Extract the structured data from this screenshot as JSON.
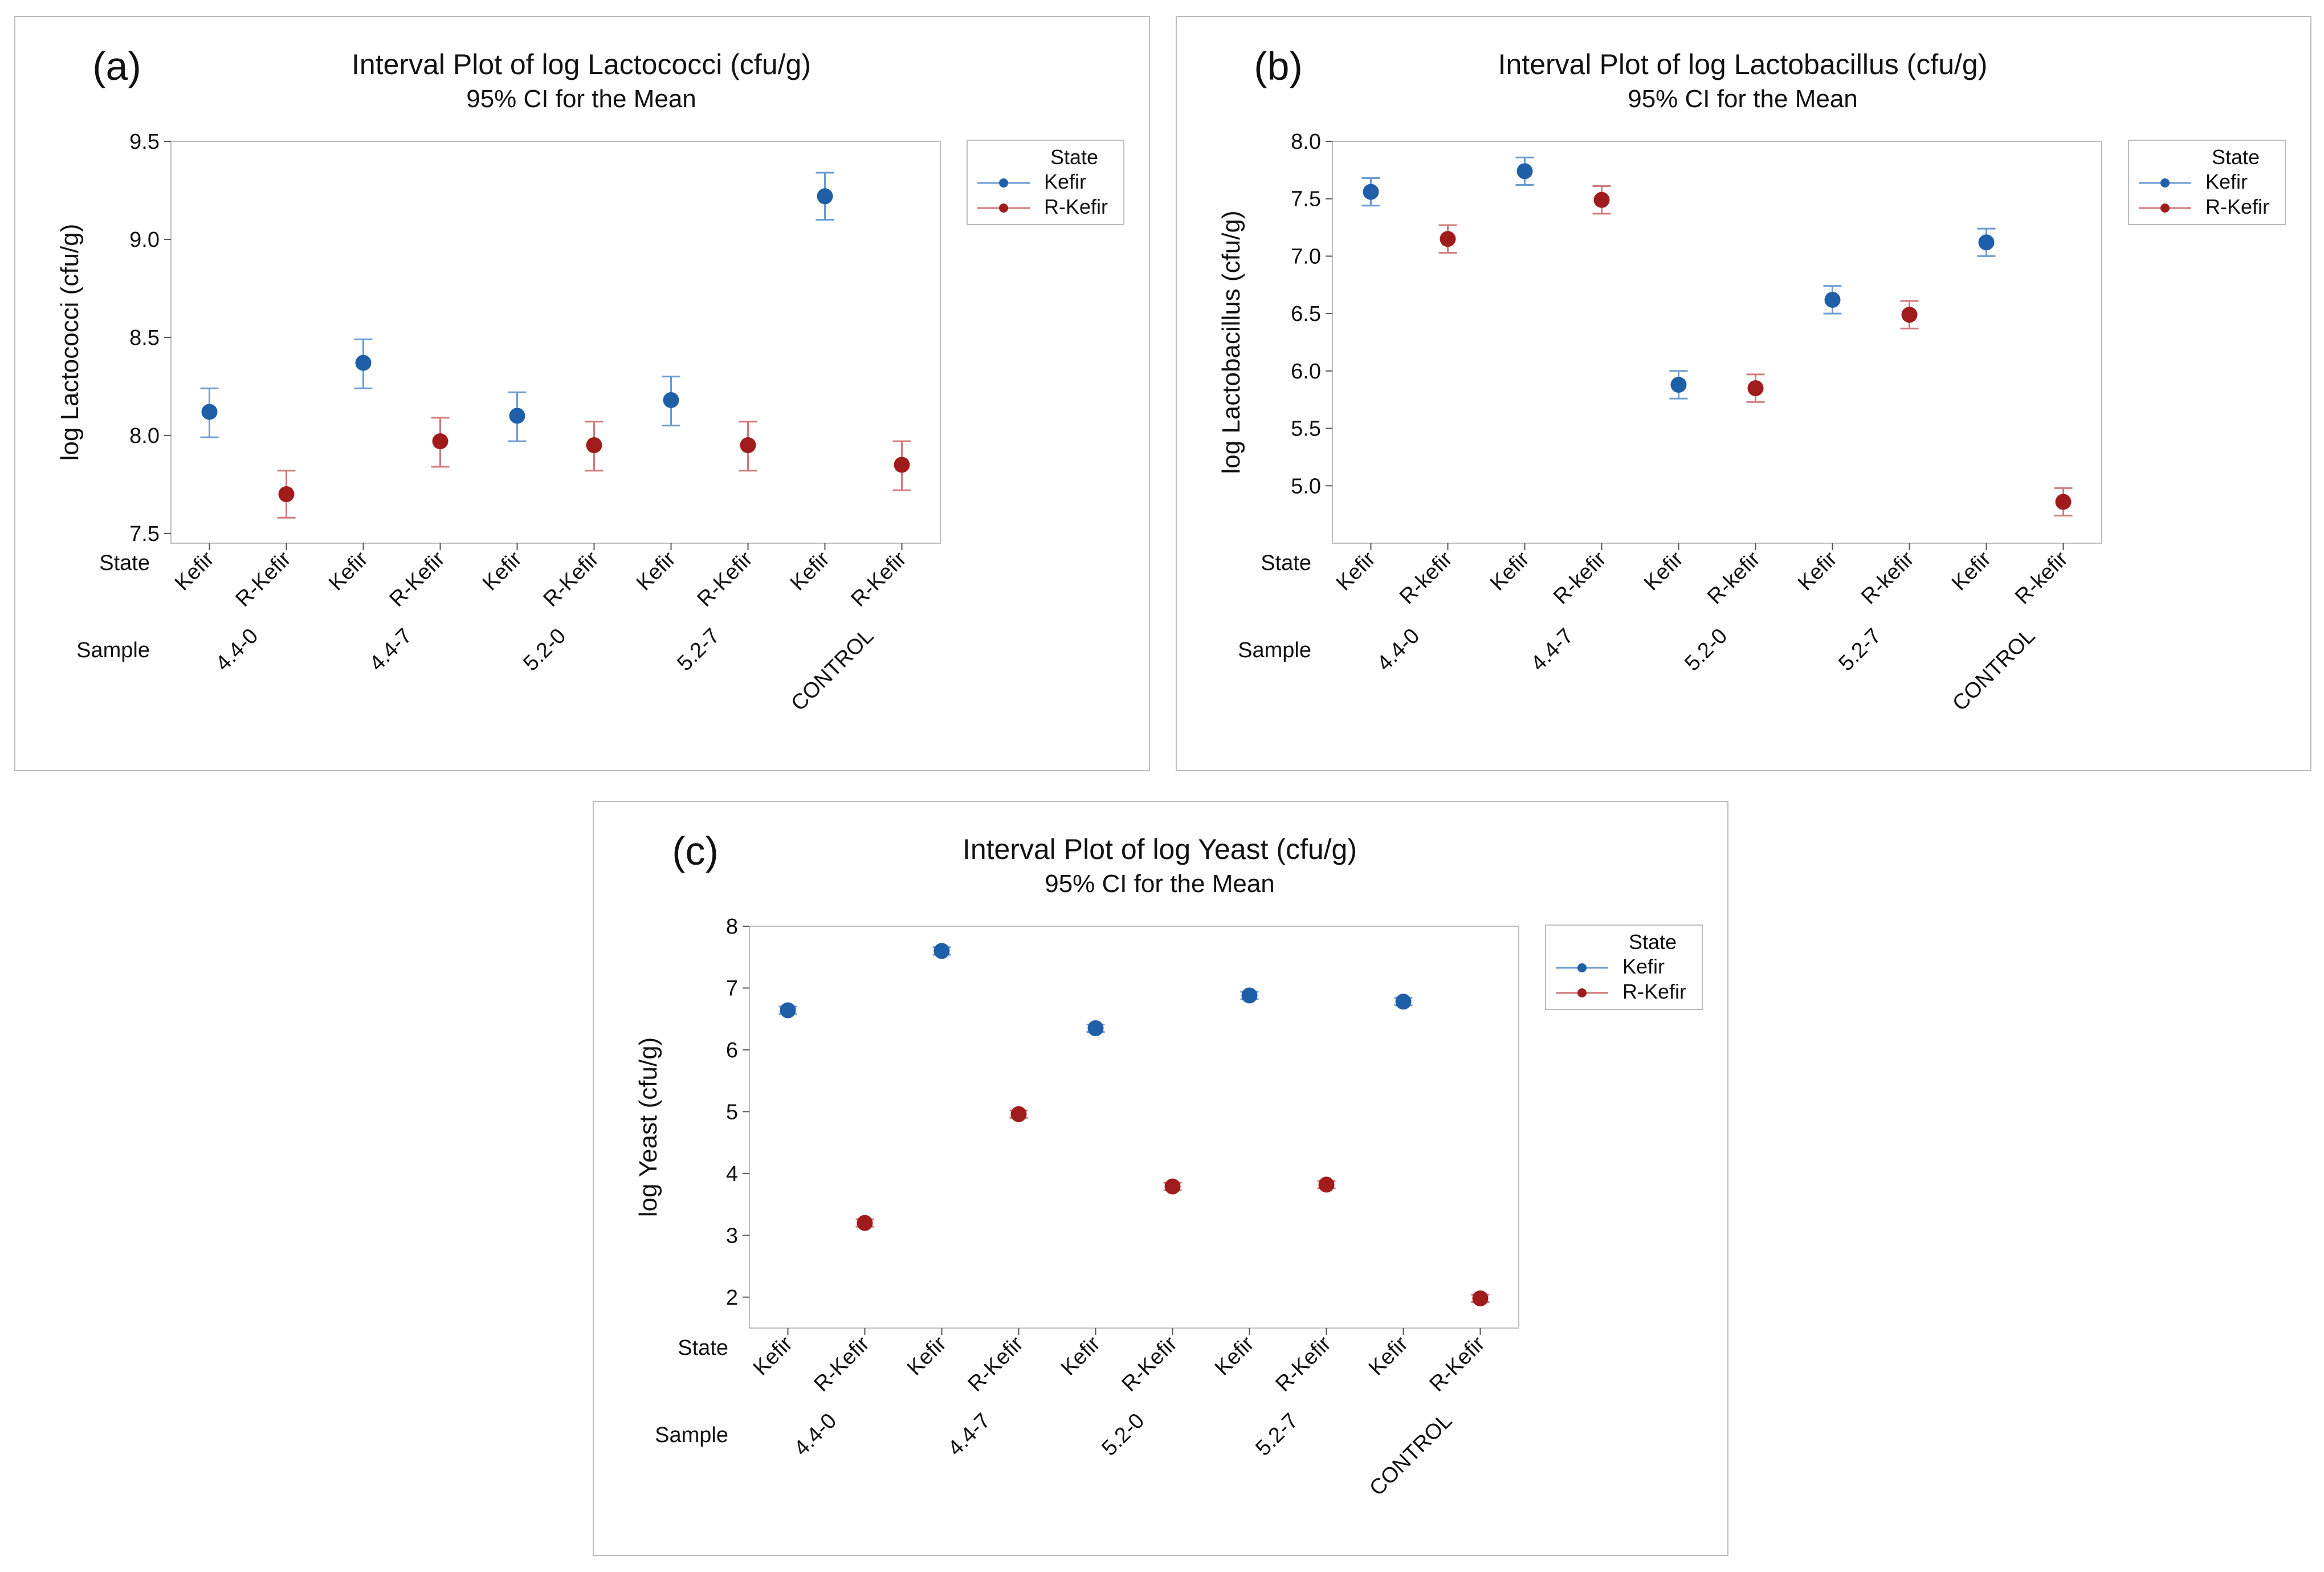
{
  "figure": {
    "state_row_label": "State",
    "sample_row_label": "Sample",
    "legend_title": "State",
    "colors": {
      "kefir": "#1f5fa8",
      "rkefir": "#a01c1c",
      "kefir_ci": "#6b9bd1",
      "rkefir_ci": "#d07a7a",
      "frame": "#bdbdbd",
      "plot_bg": "#ffffff"
    }
  },
  "chart_data": [
    {
      "type": "interval",
      "panel_letter": "(a)",
      "title": "Interval Plot of log Lactococci  (cfu/g)",
      "subtitle": "95% CI for the Mean",
      "ylabel": "log Lactococci  (cfu/g)",
      "ylim": [
        7.45,
        9.5
      ],
      "yticks": [
        7.5,
        8.0,
        8.5,
        9.0,
        9.5
      ],
      "ytick_labels": [
        "7.5",
        "8.0",
        "8.5",
        "9.0",
        "9.5"
      ],
      "samples": [
        "4.4-0",
        "4.4-7",
        "5.2-0",
        "5.2-7",
        "CONTROL"
      ],
      "state_labels": [
        "Kefir",
        "R-Kefir"
      ],
      "legend": [
        "Kefir",
        "R-Kefir"
      ],
      "series": [
        {
          "name": "Kefir",
          "means": [
            8.12,
            8.37,
            8.1,
            8.18,
            9.22
          ],
          "lower": [
            7.99,
            8.24,
            7.97,
            8.05,
            9.1
          ],
          "upper": [
            8.24,
            8.49,
            8.22,
            8.3,
            9.34
          ]
        },
        {
          "name": "R-Kefir",
          "means": [
            7.7,
            7.97,
            7.95,
            7.95,
            7.85
          ],
          "lower": [
            7.58,
            7.84,
            7.82,
            7.82,
            7.72
          ],
          "upper": [
            7.82,
            8.09,
            8.07,
            8.07,
            7.97
          ]
        }
      ]
    },
    {
      "type": "interval",
      "panel_letter": "(b)",
      "title": "Interval Plot of log Lactobacillus (cfu/g)",
      "subtitle": "95% CI for the Mean",
      "ylabel": "log Lactobacillus (cfu/g)",
      "ylim": [
        4.5,
        8.0
      ],
      "yticks": [
        5.0,
        5.5,
        6.0,
        6.5,
        7.0,
        7.5,
        8.0
      ],
      "ytick_labels": [
        "5.0",
        "5.5",
        "6.0",
        "6.5",
        "7.0",
        "7.5",
        "8.0"
      ],
      "samples": [
        "4.4-0",
        "4.4-7",
        "5.2-0",
        "5.2-7",
        "CONTROL"
      ],
      "state_labels": [
        "Kefir",
        "R-kefir"
      ],
      "legend": [
        "Kefir",
        "R-Kefir"
      ],
      "series": [
        {
          "name": "Kefir",
          "means": [
            7.56,
            7.74,
            5.88,
            6.62,
            7.12
          ],
          "lower": [
            7.44,
            7.62,
            5.76,
            6.5,
            7.0
          ],
          "upper": [
            7.68,
            7.86,
            6.0,
            6.74,
            7.24
          ]
        },
        {
          "name": "R-Kefir",
          "means": [
            7.15,
            7.49,
            5.85,
            6.49,
            4.86
          ],
          "lower": [
            7.03,
            7.37,
            5.73,
            6.37,
            4.74
          ],
          "upper": [
            7.27,
            7.61,
            5.97,
            6.61,
            4.98
          ]
        }
      ]
    },
    {
      "type": "interval",
      "panel_letter": "(c)",
      "title": "Interval Plot of log Yeast (cfu/g)",
      "subtitle": "95% CI for the Mean",
      "ylabel": "log Yeast (cfu/g)",
      "ylim": [
        1.5,
        8.0
      ],
      "yticks": [
        2,
        3,
        4,
        5,
        6,
        7,
        8
      ],
      "ytick_labels": [
        "2",
        "3",
        "4",
        "5",
        "6",
        "7",
        "8"
      ],
      "samples": [
        "4.4-0",
        "4.4-7",
        "5.2-0",
        "5.2-7",
        "CONTROL"
      ],
      "state_labels": [
        "Kefir",
        "R-Kefir"
      ],
      "legend": [
        "Kefir",
        "R-Kefir"
      ],
      "series": [
        {
          "name": "Kefir",
          "means": [
            6.64,
            7.6,
            6.35,
            6.88,
            6.78
          ],
          "lower": [
            6.58,
            7.54,
            6.29,
            6.82,
            6.72
          ],
          "upper": [
            6.7,
            7.66,
            6.41,
            6.94,
            6.84
          ]
        },
        {
          "name": "R-Kefir",
          "means": [
            3.2,
            4.96,
            3.79,
            3.82,
            1.98
          ],
          "lower": [
            3.14,
            4.9,
            3.73,
            3.76,
            1.92
          ],
          "upper": [
            3.26,
            5.02,
            3.85,
            3.88,
            2.04
          ]
        }
      ]
    }
  ]
}
